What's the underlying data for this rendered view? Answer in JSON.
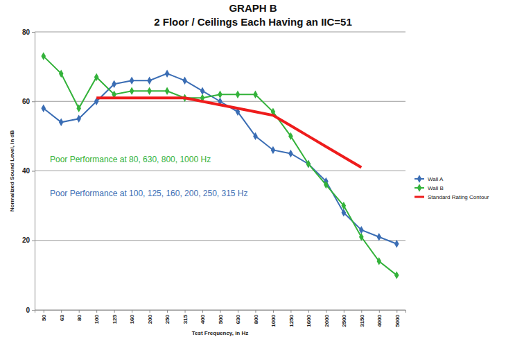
{
  "chart_data": {
    "type": "line",
    "title": "GRAPH B",
    "subtitle": "2 Floor / Ceilings Each Having an IIC=51",
    "x_label": "Test Frequency, in Hz",
    "y_label": "Normalized Sound Level, in dB",
    "categories": [
      "50",
      "63",
      "80",
      "100",
      "125",
      "160",
      "200",
      "250",
      "315",
      "400",
      "500",
      "630",
      "800",
      "1000",
      "1250",
      "1600",
      "2000",
      "2500",
      "3150",
      "4000",
      "5000"
    ],
    "series": [
      {
        "name": "Wall A",
        "color": "#3a6db4",
        "marker": "diamond",
        "values": [
          58,
          54,
          55,
          60,
          65,
          66,
          66,
          68,
          66,
          63,
          60,
          57,
          50,
          46,
          45,
          42,
          37,
          28,
          23,
          21,
          19
        ]
      },
      {
        "name": "Wall B",
        "color": "#33b23a",
        "marker": "diamond",
        "values": [
          73,
          68,
          58,
          67,
          62,
          63,
          63,
          63,
          61,
          61,
          62,
          62,
          62,
          57,
          50,
          42,
          36,
          30,
          21,
          14,
          10
        ]
      },
      {
        "name": "Standard Rating Contour",
        "color": "#ee1c1c",
        "marker": "none",
        "values": [
          null,
          null,
          null,
          61,
          61,
          61,
          61,
          61,
          61,
          60,
          59,
          58,
          57,
          56,
          53,
          50,
          47,
          44,
          41,
          null,
          null
        ]
      }
    ],
    "annotations": [
      {
        "text": "Poor Performance at 80, 630, 800, 1000 Hz",
        "color": "#33b23a"
      },
      {
        "text": "Poor Performance at 100, 125, 160, 200, 250, 315 Hz",
        "color": "#3a6db4"
      }
    ],
    "ylim": [
      0,
      80
    ],
    "yticks": [
      0,
      20,
      40,
      60,
      80
    ],
    "grid": true,
    "legend": "right"
  }
}
